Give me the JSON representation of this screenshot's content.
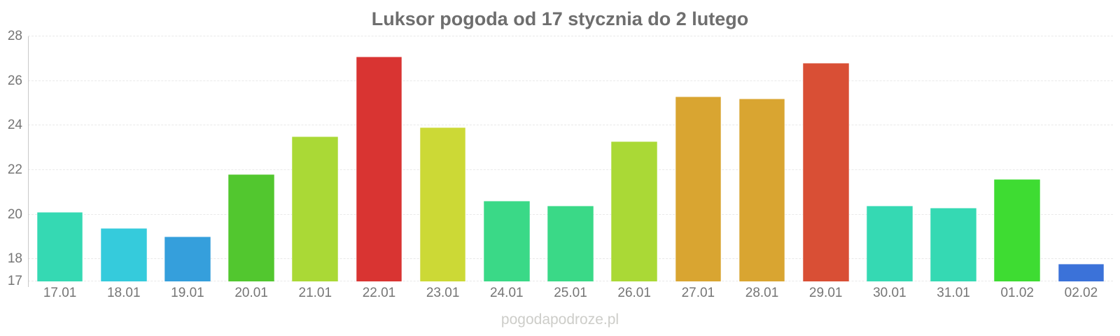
{
  "chart_data": {
    "type": "bar",
    "title": "Luksor pogoda od 17 stycznia do 2 lutego",
    "categories": [
      "17.01",
      "18.01",
      "19.01",
      "20.01",
      "21.01",
      "22.01",
      "23.01",
      "24.01",
      "25.01",
      "26.01",
      "27.01",
      "28.01",
      "29.01",
      "30.01",
      "31.01",
      "01.02",
      "02.02"
    ],
    "values": [
      20.1,
      19.4,
      19.0,
      21.8,
      23.5,
      27.1,
      23.9,
      20.6,
      20.4,
      23.3,
      25.3,
      25.2,
      26.8,
      20.4,
      20.3,
      21.6,
      17.8
    ],
    "bar_colors": [
      "#35d9b3",
      "#35cbdc",
      "#359fdc",
      "#52c72f",
      "#aad936",
      "#d93432",
      "#ccd936",
      "#3ad987",
      "#3ad987",
      "#aad936",
      "#d9a531",
      "#d9a531",
      "#d94f35",
      "#35d9b3",
      "#35d9b3",
      "#3edc32",
      "#3b72d9"
    ],
    "xlabel": "",
    "ylabel": "",
    "ylim": [
      17,
      28
    ],
    "yticks": [
      28,
      26,
      24,
      22,
      20,
      18,
      17
    ],
    "grid": "on",
    "legend": "none"
  },
  "watermark": {
    "text": "pogodapodroze.pl"
  },
  "colors": {
    "title": "#6e6e6e",
    "axis_line": "#c8c8c8",
    "gridline": "#e9e9e9",
    "tick_label": "#757575",
    "watermark": "#cdcdc9",
    "background": "#ffffff"
  }
}
